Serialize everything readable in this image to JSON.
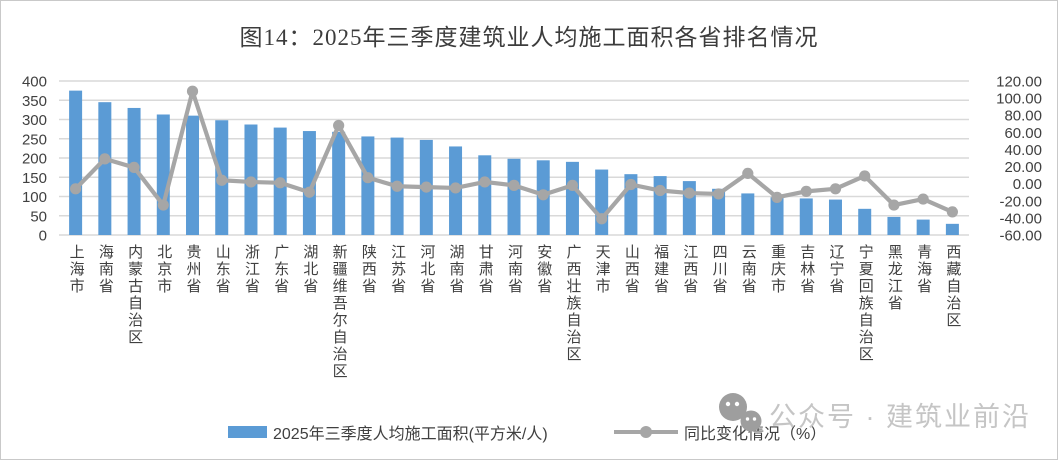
{
  "title": "图14：2025年三季度建筑业人均施工面积各省排名情况",
  "legend": {
    "bar_label": "2025年三季度人均施工面积(平方米/人)",
    "line_label": "同比变化情况（%）"
  },
  "watermark": {
    "icon": "wechat-icon",
    "text": "公众号 · 建筑业前沿"
  },
  "colors": {
    "bar": "#5b9bd5",
    "line": "#a6a6a6",
    "grid": "#d9d9d9",
    "axis_text": "#404040",
    "watermark_icon": "#9e9e9e",
    "watermark_text": "#c5c5c5"
  },
  "chart_data": {
    "type": "bar",
    "subtype": "combo-bar-line-dual-axis",
    "title": "图14：2025年三季度建筑业人均施工面积各省排名情况",
    "categories": [
      "上海市",
      "海南省",
      "内蒙古自治区",
      "北京市",
      "贵州省",
      "山东省",
      "浙江省",
      "广东省",
      "湖北省",
      "新疆维吾尔自治区",
      "陕西省",
      "江苏省",
      "河北省",
      "湖南省",
      "甘肃省",
      "河南省",
      "安徽省",
      "广西壮族自治区",
      "天津市",
      "山西省",
      "福建省",
      "江西省",
      "四川省",
      "云南省",
      "重庆市",
      "吉林省",
      "辽宁省",
      "宁夏回族自治区",
      "黑龙江省",
      "青海省",
      "西藏自治区"
    ],
    "series": [
      {
        "name": "2025年三季度人均施工面积(平方米/人)",
        "type": "bar",
        "axis": "left",
        "color": "#5b9bd5",
        "values": [
          375,
          345,
          330,
          313,
          310,
          298,
          287,
          279,
          270,
          268,
          256,
          253,
          247,
          230,
          207,
          198,
          194,
          190,
          170,
          158,
          153,
          140,
          120,
          108,
          98,
          95,
          92,
          68,
          47,
          40,
          29
        ]
      },
      {
        "name": "同比变化情况（%）",
        "type": "line",
        "axis": "right",
        "color": "#a6a6a6",
        "values": [
          -6,
          29,
          19,
          -25,
          108,
          4,
          2,
          1,
          -10,
          68,
          7,
          -3,
          -4,
          -5,
          2,
          -2,
          -13,
          -2,
          -41,
          -1,
          -8,
          -11,
          -12,
          12,
          -16,
          -9,
          -6,
          9,
          -25,
          -18,
          -33
        ]
      }
    ],
    "left_axis": {
      "min": 0,
      "max": 400,
      "tick_step": 50
    },
    "right_axis": {
      "min": -60,
      "max": 120,
      "tick_step": 20,
      "tick_format": "two-decimals"
    },
    "grid": true,
    "legend_position": "bottom"
  }
}
